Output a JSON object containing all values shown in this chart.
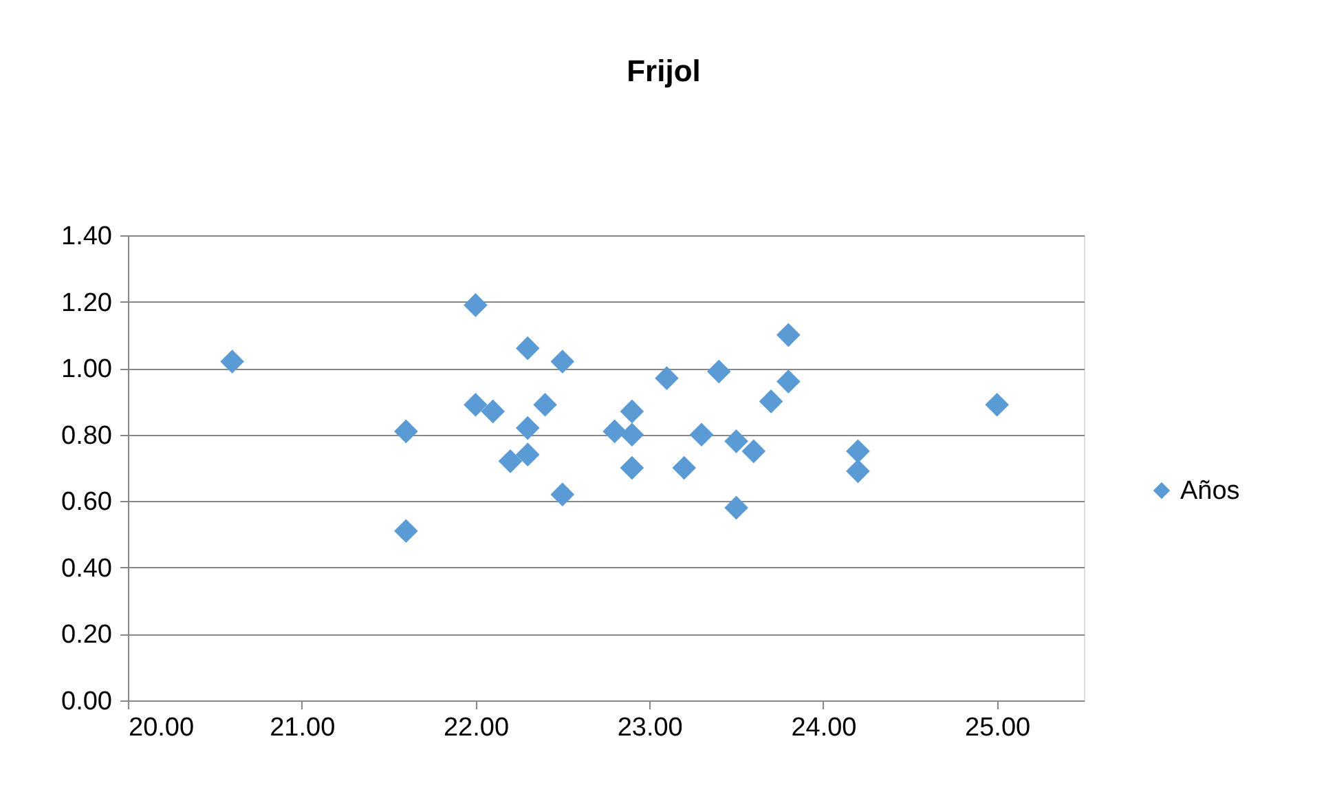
{
  "chart_data": {
    "type": "scatter",
    "title": "Frijol",
    "series": [
      {
        "name": "Años",
        "color": "#5b9bd5",
        "x": [
          20.6,
          21.6,
          21.6,
          22.0,
          22.3,
          22.5,
          22.0,
          22.1,
          22.4,
          22.3,
          22.2,
          22.3,
          22.5,
          22.8,
          22.9,
          22.9,
          22.9,
          23.1,
          23.2,
          23.3,
          23.4,
          23.5,
          23.6,
          23.5,
          23.7,
          23.8,
          23.8,
          24.2,
          24.2,
          25.0
        ],
        "values": [
          1.02,
          0.81,
          0.51,
          1.19,
          1.06,
          1.02,
          0.89,
          0.87,
          0.89,
          0.82,
          0.72,
          0.74,
          0.62,
          0.81,
          0.87,
          0.8,
          0.7,
          0.97,
          0.7,
          0.8,
          0.99,
          0.78,
          0.75,
          0.58,
          0.9,
          0.96,
          1.1,
          0.75,
          0.69,
          0.89
        ]
      }
    ],
    "xlim": [
      20,
      25.5
    ],
    "xticks": [
      {
        "value": 20,
        "label": "20.00"
      },
      {
        "value": 21,
        "label": "21.00"
      },
      {
        "value": 22,
        "label": "22.00"
      },
      {
        "value": 23,
        "label": "23.00"
      },
      {
        "value": 24,
        "label": "24.00"
      },
      {
        "value": 25,
        "label": "25.00"
      }
    ],
    "ylim": [
      0,
      1.4
    ],
    "yticks": [
      {
        "value": 0,
        "label": "0.00"
      },
      {
        "value": 0.2,
        "label": "0.20"
      },
      {
        "value": 0.4,
        "label": "0.40"
      },
      {
        "value": 0.6,
        "label": "0.60"
      },
      {
        "value": 0.8,
        "label": "0.80"
      },
      {
        "value": 1.0,
        "label": "1.00"
      },
      {
        "value": 1.2,
        "label": "1.20"
      },
      {
        "value": 1.4,
        "label": "1.40"
      }
    ],
    "grid": "y",
    "legend": "right",
    "marker": "diamond"
  }
}
